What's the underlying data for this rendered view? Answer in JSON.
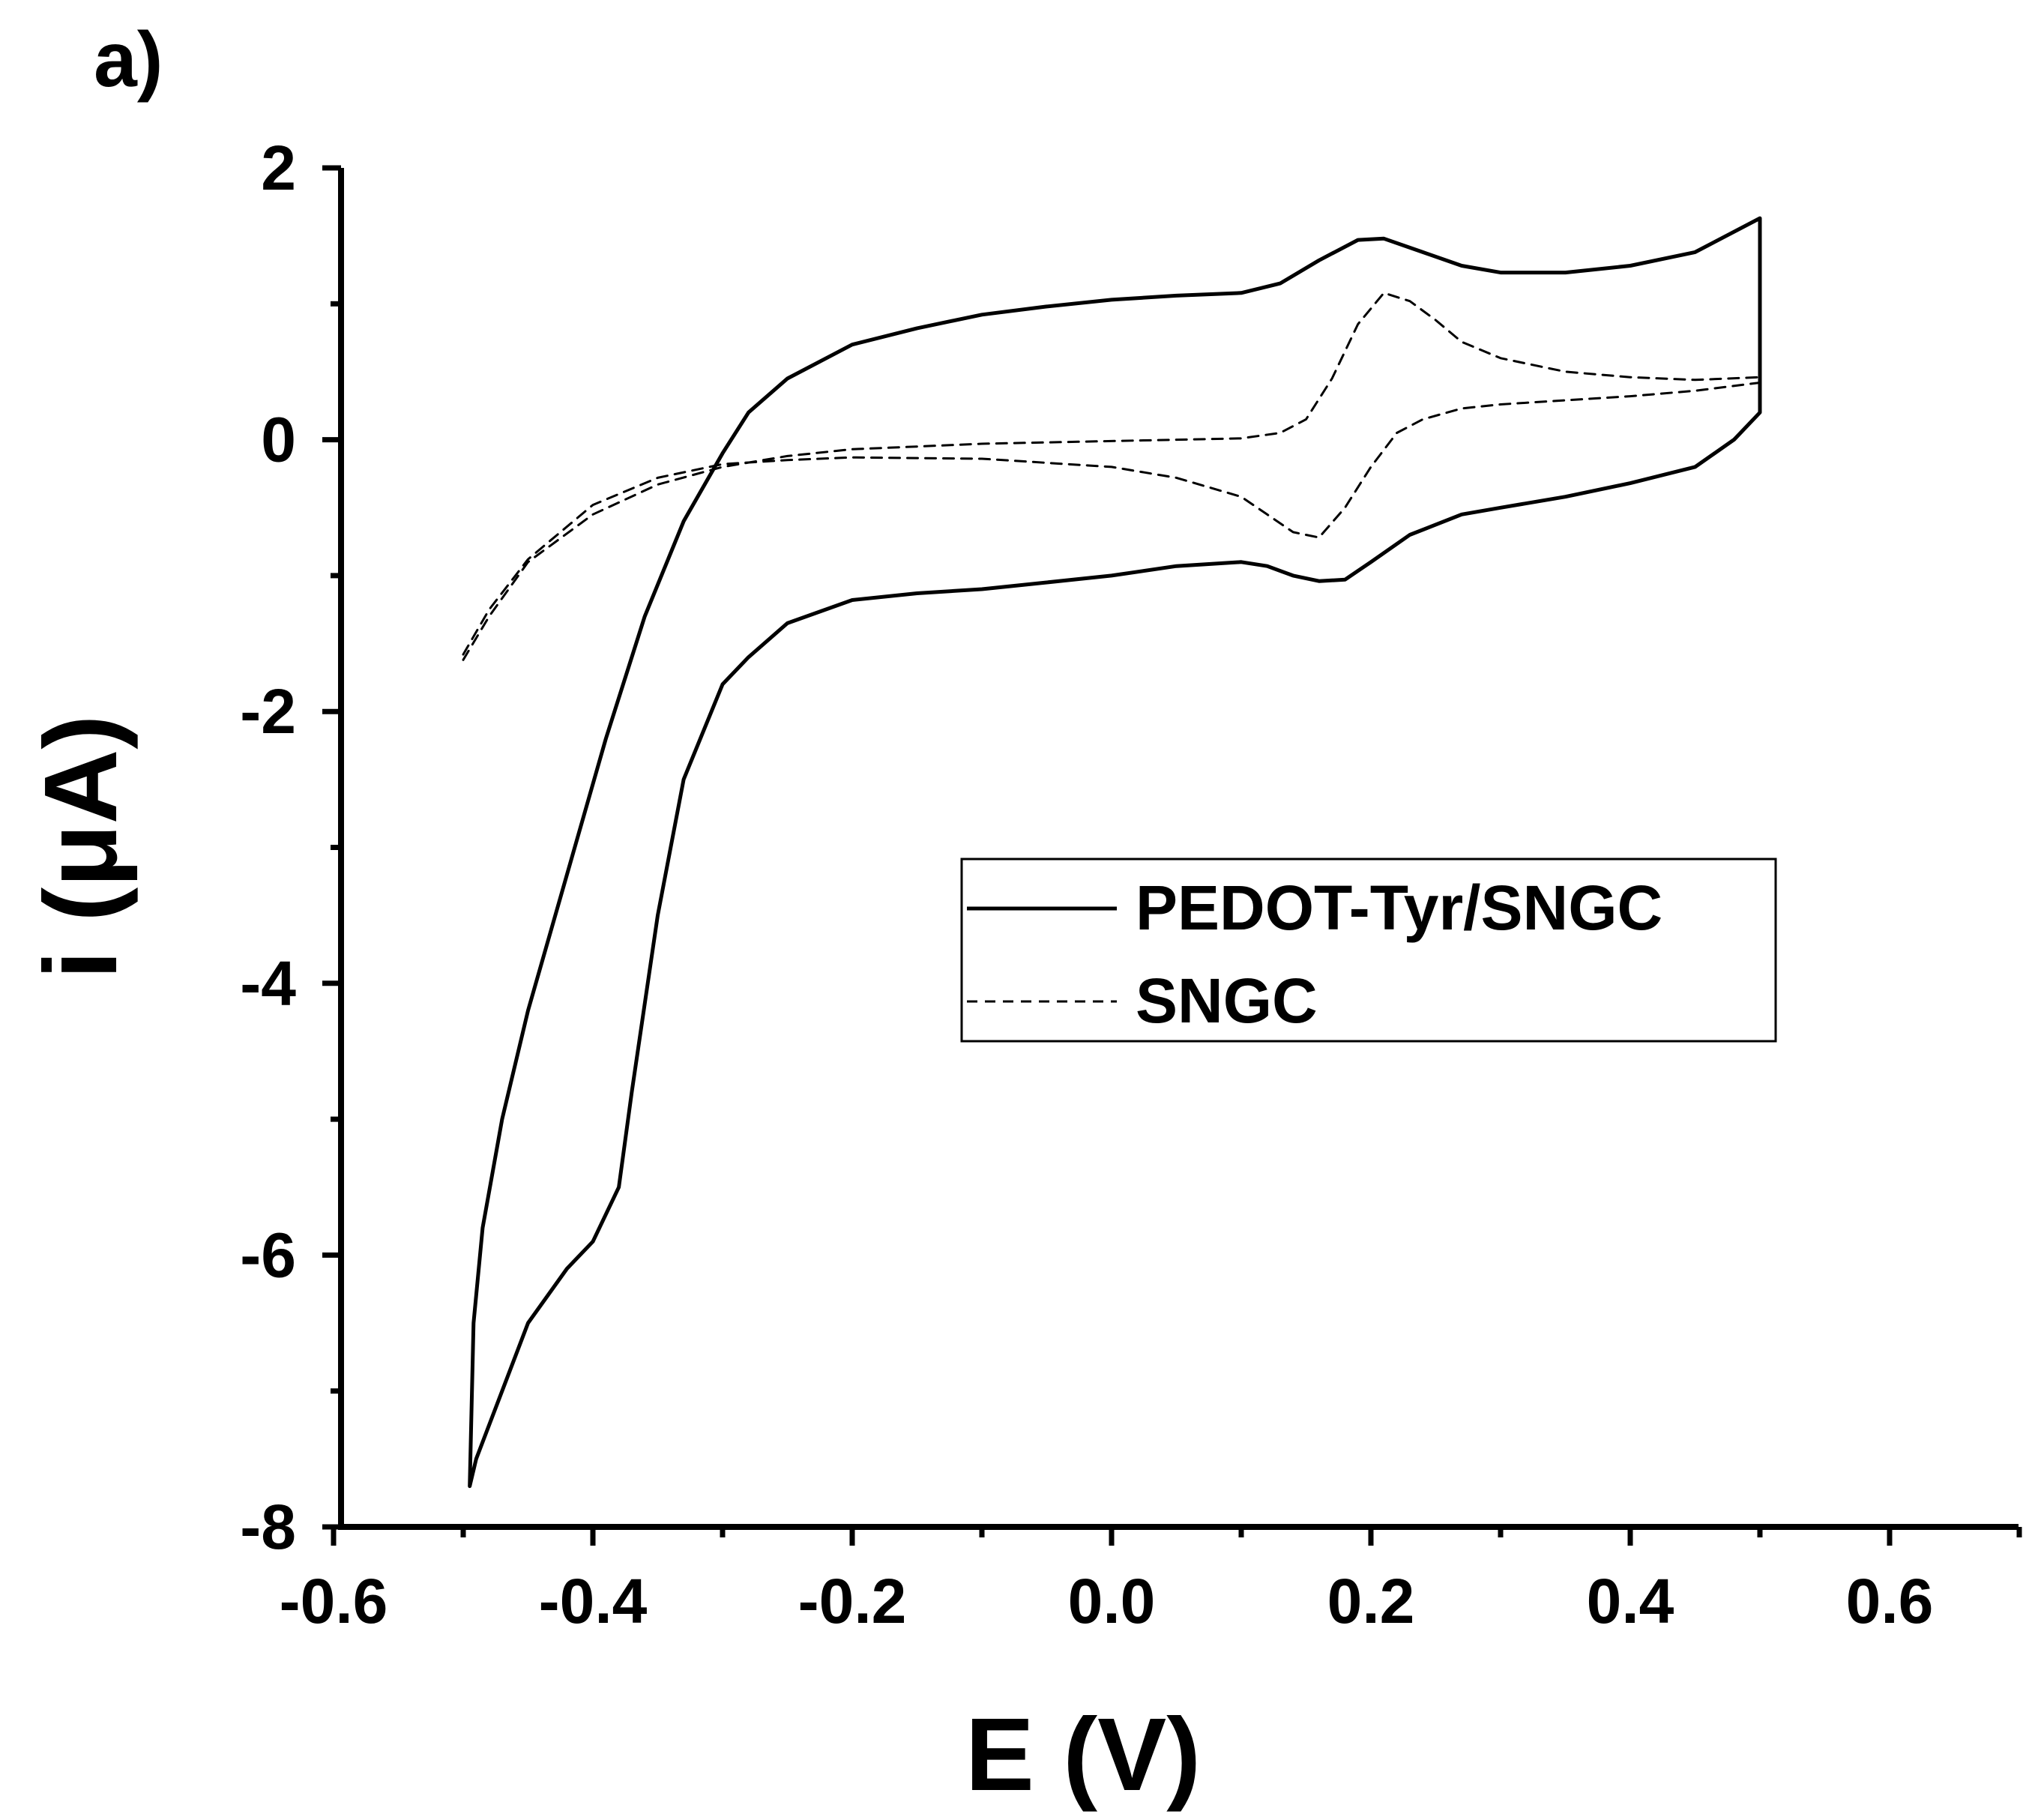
{
  "panel_label": "a)",
  "chart_data": {
    "type": "line",
    "title": "",
    "xlabel": "E (V)",
    "ylabel": "i (μA)",
    "xlim": [
      -0.6,
      0.7
    ],
    "ylim": [
      -8,
      2
    ],
    "x_ticks": [
      -0.6,
      -0.4,
      -0.2,
      0.0,
      0.2,
      0.4,
      0.6
    ],
    "x_tick_labels": [
      "-0.6",
      "-0.4",
      "-0.2",
      "0.0",
      "0.2",
      "0.4",
      "0.6"
    ],
    "y_ticks": [
      2,
      0,
      -2,
      -4,
      -6,
      -8
    ],
    "y_tick_labels": [
      "2",
      "0",
      "-2",
      "-4",
      "-6",
      "-8"
    ],
    "grid": false,
    "legend_position": "center-right",
    "series": [
      {
        "name": "PEDOT-Tyr/SNGC",
        "style": "solid",
        "color": "#000000",
        "points": [
          [
            -0.495,
            -7.7
          ],
          [
            -0.492,
            -6.5
          ],
          [
            -0.485,
            -5.8
          ],
          [
            -0.47,
            -5.0
          ],
          [
            -0.45,
            -4.2
          ],
          [
            -0.42,
            -3.2
          ],
          [
            -0.39,
            -2.2
          ],
          [
            -0.36,
            -1.3
          ],
          [
            -0.33,
            -0.6
          ],
          [
            -0.3,
            -0.1
          ],
          [
            -0.28,
            0.2
          ],
          [
            -0.25,
            0.45
          ],
          [
            -0.2,
            0.7
          ],
          [
            -0.15,
            0.82
          ],
          [
            -0.1,
            0.92
          ],
          [
            -0.05,
            0.98
          ],
          [
            0.0,
            1.03
          ],
          [
            0.05,
            1.06
          ],
          [
            0.1,
            1.08
          ],
          [
            0.13,
            1.15
          ],
          [
            0.16,
            1.32
          ],
          [
            0.19,
            1.47
          ],
          [
            0.21,
            1.48
          ],
          [
            0.24,
            1.38
          ],
          [
            0.27,
            1.28
          ],
          [
            0.3,
            1.23
          ],
          [
            0.35,
            1.23
          ],
          [
            0.4,
            1.28
          ],
          [
            0.45,
            1.38
          ],
          [
            0.5,
            1.63
          ],
          [
            0.5,
            0.2
          ],
          [
            0.48,
            0.0
          ],
          [
            0.45,
            -0.2
          ],
          [
            0.4,
            -0.32
          ],
          [
            0.35,
            -0.42
          ],
          [
            0.3,
            -0.5
          ],
          [
            0.27,
            -0.55
          ],
          [
            0.23,
            -0.7
          ],
          [
            0.2,
            -0.9
          ],
          [
            0.18,
            -1.03
          ],
          [
            0.16,
            -1.04
          ],
          [
            0.14,
            -1.0
          ],
          [
            0.12,
            -0.93
          ],
          [
            0.1,
            -0.9
          ],
          [
            0.05,
            -0.93
          ],
          [
            0.0,
            -1.0
          ],
          [
            -0.05,
            -1.05
          ],
          [
            -0.1,
            -1.1
          ],
          [
            -0.15,
            -1.13
          ],
          [
            -0.2,
            -1.18
          ],
          [
            -0.25,
            -1.35
          ],
          [
            -0.28,
            -1.6
          ],
          [
            -0.3,
            -1.8
          ],
          [
            -0.33,
            -2.5
          ],
          [
            -0.35,
            -3.5
          ],
          [
            -0.37,
            -4.8
          ],
          [
            -0.38,
            -5.5
          ],
          [
            -0.4,
            -5.9
          ],
          [
            -0.42,
            -6.1
          ],
          [
            -0.45,
            -6.5
          ],
          [
            -0.47,
            -7.0
          ],
          [
            -0.49,
            -7.5
          ],
          [
            -0.495,
            -7.7
          ]
        ]
      },
      {
        "name": "SNGC",
        "style": "dashed",
        "color": "#000000",
        "points": [
          [
            -0.5,
            -1.62
          ],
          [
            -0.48,
            -1.3
          ],
          [
            -0.45,
            -0.9
          ],
          [
            -0.4,
            -0.55
          ],
          [
            -0.35,
            -0.33
          ],
          [
            -0.3,
            -0.2
          ],
          [
            -0.25,
            -0.12
          ],
          [
            -0.2,
            -0.07
          ],
          [
            -0.15,
            -0.05
          ],
          [
            -0.1,
            -0.03
          ],
          [
            -0.05,
            -0.02
          ],
          [
            0.0,
            -0.01
          ],
          [
            0.05,
            0.0
          ],
          [
            0.1,
            0.01
          ],
          [
            0.13,
            0.05
          ],
          [
            0.15,
            0.15
          ],
          [
            0.17,
            0.45
          ],
          [
            0.19,
            0.85
          ],
          [
            0.21,
            1.08
          ],
          [
            0.23,
            1.02
          ],
          [
            0.25,
            0.88
          ],
          [
            0.27,
            0.72
          ],
          [
            0.3,
            0.6
          ],
          [
            0.35,
            0.5
          ],
          [
            0.4,
            0.46
          ],
          [
            0.45,
            0.44
          ],
          [
            0.5,
            0.46
          ],
          [
            0.5,
            0.42
          ],
          [
            0.45,
            0.36
          ],
          [
            0.4,
            0.32
          ],
          [
            0.35,
            0.29
          ],
          [
            0.3,
            0.26
          ],
          [
            0.27,
            0.23
          ],
          [
            0.24,
            0.15
          ],
          [
            0.22,
            0.05
          ],
          [
            0.2,
            -0.2
          ],
          [
            0.18,
            -0.5
          ],
          [
            0.16,
            -0.72
          ],
          [
            0.14,
            -0.68
          ],
          [
            0.12,
            -0.55
          ],
          [
            0.1,
            -0.42
          ],
          [
            0.05,
            -0.28
          ],
          [
            0.0,
            -0.2
          ],
          [
            -0.1,
            -0.14
          ],
          [
            -0.2,
            -0.13
          ],
          [
            -0.25,
            -0.15
          ],
          [
            -0.3,
            -0.18
          ],
          [
            -0.35,
            -0.28
          ],
          [
            -0.4,
            -0.48
          ],
          [
            -0.45,
            -0.88
          ],
          [
            -0.48,
            -1.25
          ],
          [
            -0.5,
            -1.58
          ]
        ]
      }
    ]
  }
}
